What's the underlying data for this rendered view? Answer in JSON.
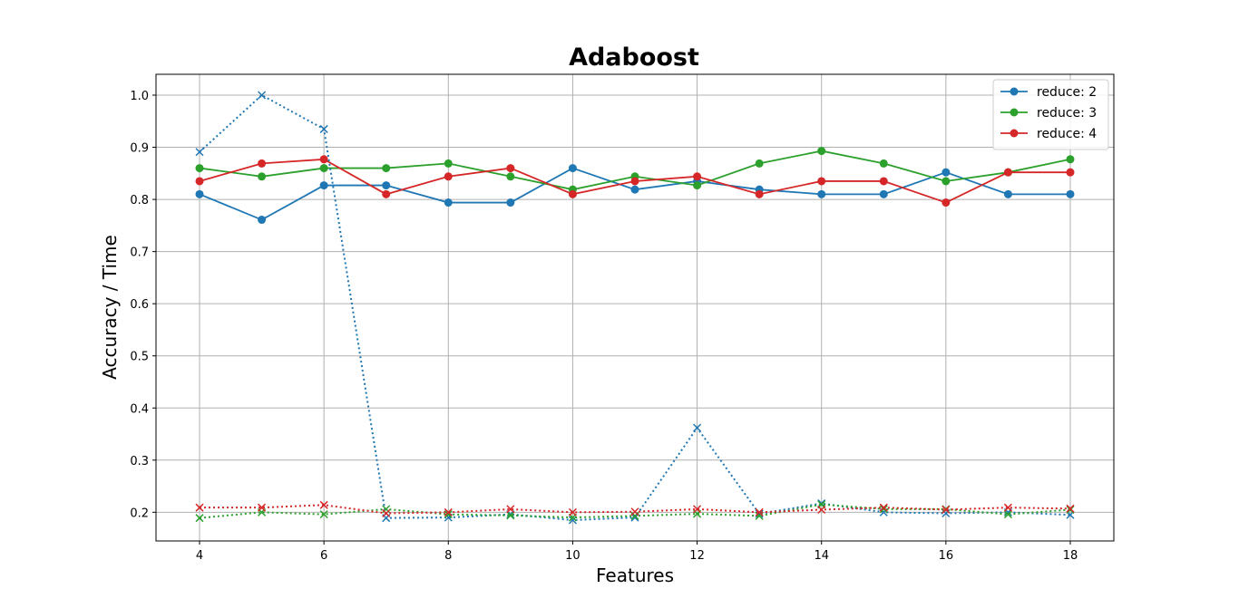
{
  "chart_data": {
    "type": "line",
    "title": "Adaboost",
    "xlabel": "Features",
    "ylabel": "Accuracy / Time",
    "xlim": [
      3.3,
      18.7
    ],
    "ylim": [
      0.145,
      1.04
    ],
    "xticks": [
      4,
      6,
      8,
      10,
      12,
      14,
      16,
      18
    ],
    "yticks": [
      0.2,
      0.3,
      0.4,
      0.5,
      0.6,
      0.7,
      0.8,
      0.9,
      1.0
    ],
    "grid": true,
    "legend_position": "top-right",
    "x": [
      4,
      5,
      6,
      7,
      8,
      9,
      10,
      11,
      12,
      13,
      14,
      15,
      16,
      17,
      18
    ],
    "series": [
      {
        "name": "reduce: 2",
        "color": "#1f77b4",
        "style": "solid",
        "marker": "circle",
        "values": [
          0.81,
          0.761,
          0.827,
          0.827,
          0.794,
          0.794,
          0.86,
          0.819,
          0.835,
          0.819,
          0.81,
          0.81,
          0.852,
          0.81,
          0.81
        ]
      },
      {
        "name": "reduce: 3",
        "color": "#2ca02c",
        "style": "solid",
        "marker": "circle",
        "values": [
          0.86,
          0.844,
          0.86,
          0.86,
          0.869,
          0.844,
          0.819,
          0.844,
          0.827,
          0.869,
          0.893,
          0.869,
          0.835,
          0.852,
          0.877
        ]
      },
      {
        "name": "reduce: 4",
        "color": "#d62728",
        "style": "solid",
        "marker": "circle",
        "values": [
          0.835,
          0.869,
          0.877,
          0.81,
          0.844,
          0.86,
          0.81,
          0.835,
          0.844,
          0.81,
          0.835,
          0.835,
          0.794,
          0.852,
          0.852
        ]
      },
      {
        "color": "#1f77b4",
        "style": "dotted",
        "marker": "x",
        "values": [
          0.891,
          1.0,
          0.935,
          0.189,
          0.19,
          0.196,
          0.185,
          0.19,
          0.362,
          0.197,
          0.217,
          0.2,
          0.198,
          0.2,
          0.195
        ]
      },
      {
        "color": "#2ca02c",
        "style": "dotted",
        "marker": "x",
        "values": [
          0.189,
          0.2,
          0.196,
          0.206,
          0.196,
          0.194,
          0.19,
          0.193,
          0.197,
          0.193,
          0.215,
          0.206,
          0.206,
          0.196,
          0.205
        ]
      },
      {
        "color": "#d62728",
        "style": "dotted",
        "marker": "x",
        "values": [
          0.209,
          0.209,
          0.214,
          0.198,
          0.2,
          0.206,
          0.2,
          0.201,
          0.206,
          0.2,
          0.205,
          0.209,
          0.205,
          0.209,
          0.207
        ]
      }
    ]
  }
}
